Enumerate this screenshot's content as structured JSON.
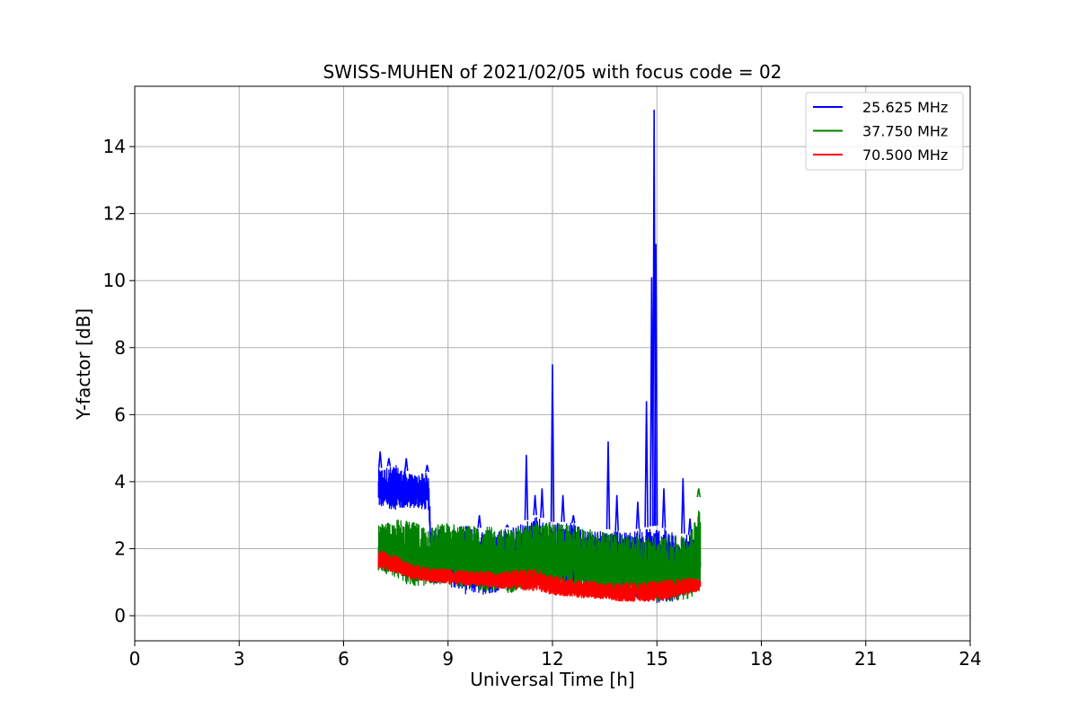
{
  "chart_data": {
    "type": "line",
    "title": "SWISS-MUHEN of 2021/02/05 with focus code = 02",
    "xlabel": "Universal Time [h]",
    "ylabel": "Y-factor [dB]",
    "xlim": [
      0,
      24
    ],
    "ylim": [
      -0.75,
      15.8
    ],
    "xticks": [
      0,
      3,
      6,
      9,
      12,
      15,
      18,
      21,
      24
    ],
    "yticks": [
      0,
      2,
      4,
      6,
      8,
      10,
      12,
      14
    ],
    "xtick_labels": [
      "0",
      "3",
      "6",
      "9",
      "12",
      "15",
      "18",
      "21",
      "24"
    ],
    "ytick_labels": [
      "0",
      "2",
      "4",
      "6",
      "8",
      "10",
      "12",
      "14"
    ],
    "grid": true,
    "legend_position": "top-right",
    "series": [
      {
        "name": "25.625 MHz",
        "color": "#0000ff",
        "x_range": [
          7.0,
          16.25
        ],
        "envelope": {
          "x": [
            7.0,
            7.5,
            8.0,
            8.45,
            8.5,
            9.0,
            9.5,
            10.0,
            10.5,
            11.0,
            11.5,
            12.0,
            12.5,
            13.0,
            13.5,
            14.0,
            14.5,
            15.0,
            15.5,
            16.0,
            16.25
          ],
          "min": [
            3.1,
            3.0,
            3.1,
            3.0,
            0.8,
            0.7,
            0.4,
            0.4,
            0.5,
            0.6,
            0.7,
            0.7,
            0.6,
            0.5,
            0.4,
            0.3,
            0.2,
            0.1,
            0.2,
            0.5,
            1.2
          ],
          "max": [
            4.4,
            4.5,
            4.2,
            4.3,
            2.6,
            2.6,
            2.7,
            2.6,
            2.6,
            2.7,
            3.0,
            2.8,
            2.8,
            2.6,
            2.6,
            2.5,
            2.6,
            2.7,
            2.5,
            2.4,
            1.8
          ]
        },
        "peaks": [
          {
            "x": 7.05,
            "y": 4.9
          },
          {
            "x": 7.3,
            "y": 4.7
          },
          {
            "x": 7.8,
            "y": 4.7
          },
          {
            "x": 8.4,
            "y": 4.5
          },
          {
            "x": 9.9,
            "y": 3.0
          },
          {
            "x": 10.7,
            "y": 2.7
          },
          {
            "x": 11.25,
            "y": 4.8
          },
          {
            "x": 11.5,
            "y": 3.6
          },
          {
            "x": 11.7,
            "y": 3.8
          },
          {
            "x": 12.0,
            "y": 7.5
          },
          {
            "x": 12.3,
            "y": 3.6
          },
          {
            "x": 12.6,
            "y": 3.0
          },
          {
            "x": 13.6,
            "y": 5.2
          },
          {
            "x": 13.85,
            "y": 3.6
          },
          {
            "x": 14.45,
            "y": 3.4
          },
          {
            "x": 14.7,
            "y": 6.4
          },
          {
            "x": 14.85,
            "y": 10.1
          },
          {
            "x": 14.92,
            "y": 15.1
          },
          {
            "x": 14.97,
            "y": 11.1
          },
          {
            "x": 15.2,
            "y": 3.8
          },
          {
            "x": 15.75,
            "y": 4.1
          },
          {
            "x": 15.95,
            "y": 2.9
          }
        ]
      },
      {
        "name": "37.750 MHz",
        "color": "#008000",
        "x_range": [
          7.0,
          16.25
        ],
        "envelope": {
          "x": [
            7.0,
            7.5,
            8.0,
            8.5,
            9.0,
            9.5,
            10.0,
            10.5,
            11.0,
            11.5,
            12.0,
            12.5,
            13.0,
            13.5,
            14.0,
            14.5,
            15.0,
            15.5,
            16.0,
            16.25
          ],
          "min": [
            1.2,
            0.9,
            0.6,
            0.7,
            0.7,
            0.6,
            0.5,
            0.4,
            0.5,
            0.6,
            0.6,
            0.5,
            0.4,
            0.3,
            0.3,
            0.3,
            0.2,
            0.2,
            0.3,
            0.5
          ],
          "max": [
            2.7,
            2.9,
            2.8,
            2.7,
            2.8,
            2.7,
            2.7,
            2.6,
            2.6,
            2.8,
            2.8,
            2.7,
            2.6,
            2.5,
            2.5,
            2.4,
            2.4,
            2.4,
            2.5,
            3.8
          ]
        },
        "peaks": [
          {
            "x": 16.2,
            "y": 3.8
          }
        ]
      },
      {
        "name": "70.500 MHz",
        "color": "#ff0000",
        "x_range": [
          7.0,
          16.25
        ],
        "envelope": {
          "x": [
            7.0,
            7.5,
            8.0,
            8.5,
            9.0,
            9.5,
            10.0,
            10.5,
            11.0,
            11.5,
            12.0,
            12.5,
            13.0,
            13.5,
            14.0,
            14.5,
            15.0,
            15.5,
            16.0,
            16.25
          ],
          "min": [
            1.35,
            1.2,
            1.0,
            0.95,
            0.9,
            0.85,
            0.8,
            0.75,
            0.7,
            0.65,
            0.55,
            0.5,
            0.45,
            0.4,
            0.35,
            0.35,
            0.35,
            0.45,
            0.6,
            0.7
          ],
          "max": [
            2.0,
            1.8,
            1.55,
            1.45,
            1.4,
            1.35,
            1.35,
            1.3,
            1.4,
            1.4,
            1.2,
            1.1,
            1.05,
            1.0,
            1.0,
            1.0,
            1.05,
            1.1,
            1.15,
            1.1
          ]
        },
        "peaks": []
      }
    ]
  }
}
